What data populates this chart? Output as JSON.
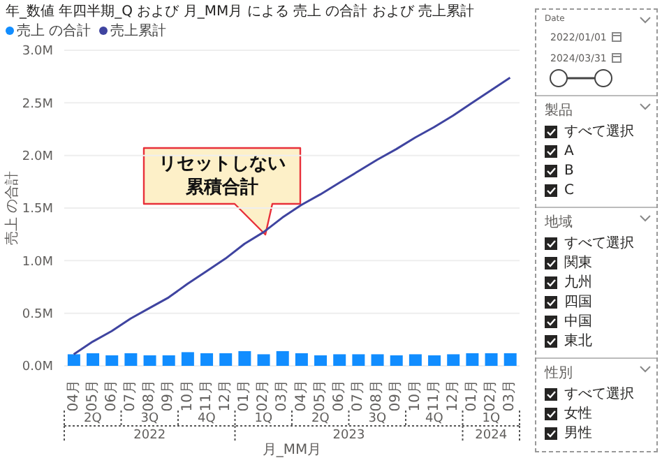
{
  "chart_data": [
    {
      "type": "bar",
      "title": "年_数値 年四半期_Q および 月_MM月 による 売上 の合計 および 売上累計",
      "xlabel": "月_MM月",
      "ylabel": "売上 の合計",
      "categories": [
        "04月",
        "05月",
        "06月",
        "07月",
        "08月",
        "09月",
        "10月",
        "11月",
        "12月",
        "01月",
        "02月",
        "03月",
        "04月",
        "05月",
        "06月",
        "07月",
        "08月",
        "09月",
        "10月",
        "11月",
        "12月",
        "01月",
        "02月",
        "03月"
      ],
      "series": [
        {
          "name": "売上 の合計",
          "type": "bar",
          "color": "#118dff",
          "values": [
            0.11,
            0.12,
            0.1,
            0.12,
            0.1,
            0.1,
            0.13,
            0.12,
            0.12,
            0.14,
            0.11,
            0.14,
            0.12,
            0.1,
            0.11,
            0.11,
            0.11,
            0.1,
            0.11,
            0.1,
            0.11,
            0.12,
            0.12,
            0.12
          ]
        },
        {
          "name": "売上累計",
          "type": "line",
          "color": "#3f44a0",
          "values": [
            0.11,
            0.23,
            0.33,
            0.45,
            0.55,
            0.65,
            0.78,
            0.9,
            1.02,
            1.16,
            1.27,
            1.41,
            1.53,
            1.63,
            1.74,
            1.85,
            1.96,
            2.06,
            2.17,
            2.27,
            2.38,
            2.5,
            2.62,
            2.74
          ]
        }
      ],
      "ylim": [
        0,
        3
      ],
      "yticks": [
        {
          "value": 0,
          "label": "0.0M"
        },
        {
          "value": 0.5,
          "label": "0.5M"
        },
        {
          "value": 1,
          "label": "1.0M"
        },
        {
          "value": 1.5,
          "label": "1.5M"
        },
        {
          "value": 2,
          "label": "2.0M"
        },
        {
          "value": 2.5,
          "label": "2.5M"
        },
        {
          "value": 3,
          "label": "3.0M"
        }
      ],
      "grid": "y",
      "legend": "top left",
      "marker": "none",
      "annotations": [
        "リセットしない累積合計",
        "2Q",
        "3Q",
        "4Q",
        "1Q",
        "2Q",
        "3Q",
        "4Q",
        "1Q",
        "2022",
        "2023",
        "2024"
      ]
    },
    {
      "type": "other",
      "annotations": [
        "Date",
        "2022/01/01",
        "2024/03/31",
        "製品",
        "すべて選択",
        "A",
        "B",
        "C",
        "地域",
        "すべて選択",
        "関東",
        "九州",
        "四国",
        "中国",
        "東北",
        "性別",
        "すべて選択",
        "女性",
        "男性"
      ]
    }
  ]
}
